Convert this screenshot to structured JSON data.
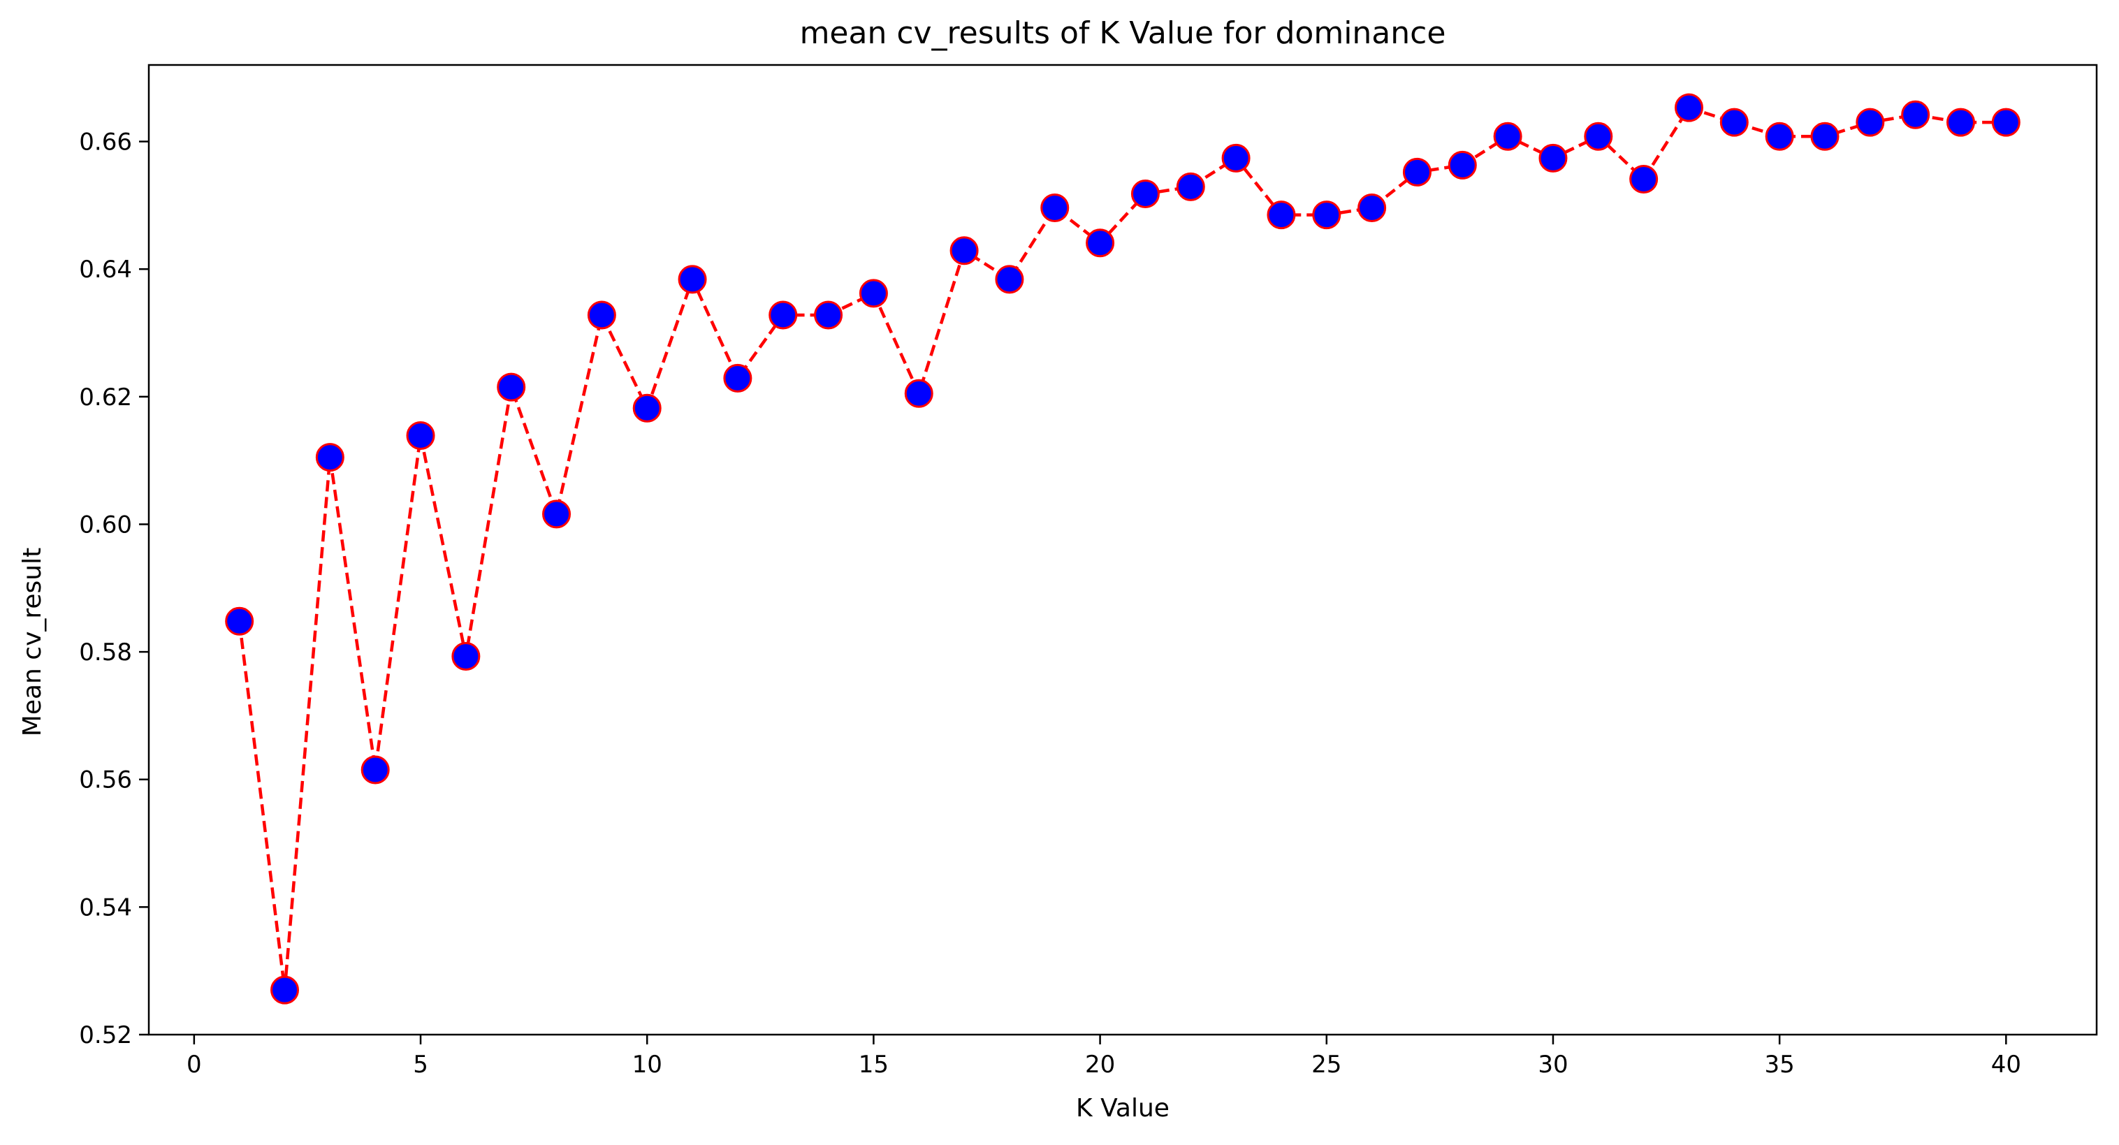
{
  "chart_data": {
    "type": "line",
    "title": "mean cv_results of  K Value for dominance",
    "xlabel": "K Value",
    "ylabel": "Mean cv_result",
    "xlim": [
      -1,
      42
    ],
    "ylim": [
      0.52,
      0.672
    ],
    "xticks": [
      0,
      5,
      10,
      15,
      20,
      25,
      30,
      35,
      40
    ],
    "xtick_labels": [
      "0",
      "5",
      "10",
      "15",
      "20",
      "25",
      "30",
      "35",
      "40"
    ],
    "yticks": [
      0.52,
      0.54,
      0.56,
      0.58,
      0.6,
      0.62,
      0.64,
      0.66
    ],
    "ytick_labels": [
      "0.52",
      "0.54",
      "0.56",
      "0.58",
      "0.60",
      "0.62",
      "0.64",
      "0.66"
    ],
    "grid": false,
    "series": [
      {
        "line_color": "#ff0000",
        "line_style": "dashed",
        "marker": "circle",
        "marker_face_color": "#0000ff",
        "marker_edge_color": "#ff0000",
        "x": [
          1,
          2,
          3,
          4,
          5,
          6,
          7,
          8,
          9,
          10,
          11,
          12,
          13,
          14,
          15,
          16,
          17,
          18,
          19,
          20,
          21,
          22,
          23,
          24,
          25,
          26,
          27,
          28,
          29,
          30,
          31,
          32,
          33,
          34,
          35,
          36,
          37,
          38,
          39,
          40
        ],
        "y": [
          0.5848,
          0.527,
          0.6105,
          0.5615,
          0.6139,
          0.5793,
          0.6215,
          0.6016,
          0.6328,
          0.6182,
          0.6384,
          0.6229,
          0.6328,
          0.6328,
          0.6362,
          0.6205,
          0.6429,
          0.6384,
          0.6496,
          0.6441,
          0.6518,
          0.6529,
          0.6574,
          0.6485,
          0.6485,
          0.6496,
          0.6552,
          0.6563,
          0.6608,
          0.6574,
          0.6608,
          0.6541,
          0.6653,
          0.663,
          0.6608,
          0.6608,
          0.663,
          0.6642,
          0.663,
          0.663
        ]
      }
    ]
  }
}
